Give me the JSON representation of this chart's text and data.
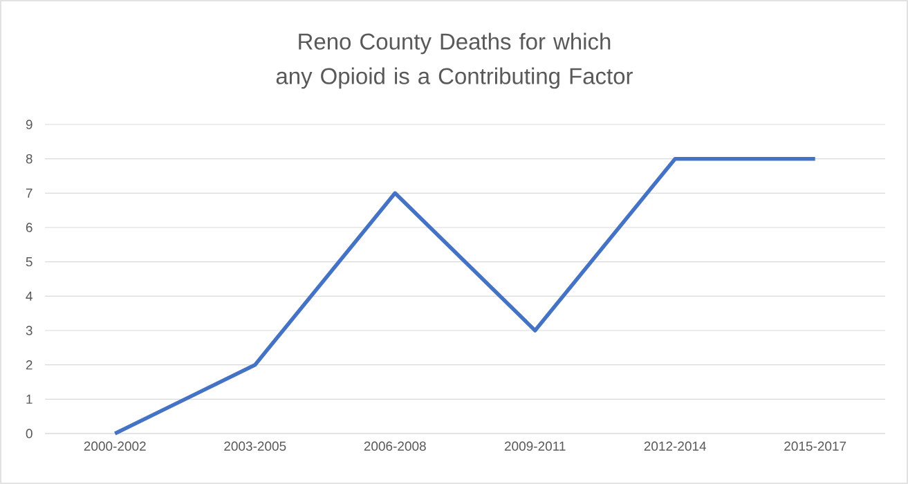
{
  "chart_data": {
    "type": "line",
    "title": "Reno County Deaths for which any Opioid is a Contributing Factor",
    "categories": [
      "2000-2002",
      "2003-2005",
      "2006-2008",
      "2009-2011",
      "2012-2014",
      "2015-2017"
    ],
    "series": [
      {
        "color": "#4472c4",
        "values": [
          0,
          2,
          7,
          3,
          8,
          8
        ]
      }
    ],
    "ylim": [
      0,
      9
    ],
    "yticks": [
      0,
      1,
      2,
      3,
      4,
      5,
      6,
      7,
      8,
      9
    ],
    "grid": "y"
  }
}
